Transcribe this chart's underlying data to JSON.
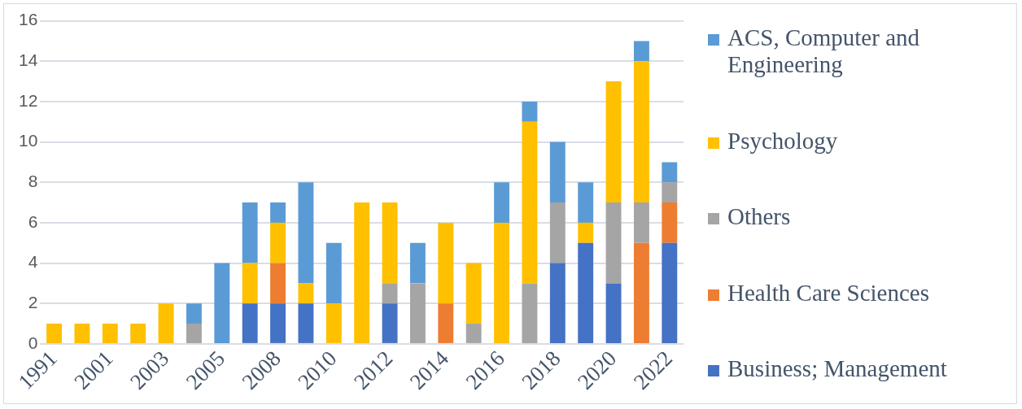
{
  "chart_data": {
    "type": "bar",
    "stacked": true,
    "grid": "y",
    "legend": "right",
    "categories": [
      "1991",
      null,
      "2001",
      null,
      "2003",
      null,
      "2005",
      null,
      "2008",
      null,
      "2010",
      null,
      "2012",
      null,
      "2014",
      null,
      "2016",
      null,
      "2018",
      null,
      "2020",
      null,
      "2022"
    ],
    "ylim": [
      0,
      16
    ],
    "yticks": [
      0,
      2,
      4,
      6,
      8,
      10,
      12,
      14,
      16
    ],
    "series": [
      {
        "name": "Business; Management",
        "color": "#4472c4",
        "values": [
          0,
          0,
          0,
          0,
          0,
          0,
          0,
          2,
          2,
          2,
          0,
          0,
          2,
          0,
          0,
          0,
          0,
          0,
          4,
          5,
          3,
          0,
          5
        ]
      },
      {
        "name": "Health Care Sciences",
        "color": "#ed7d31",
        "values": [
          0,
          0,
          0,
          0,
          0,
          0,
          0,
          0,
          2,
          0,
          0,
          0,
          0,
          0,
          2,
          0,
          0,
          0,
          0,
          0,
          0,
          5,
          2
        ]
      },
      {
        "name": "Others",
        "color": "#a5a5a5",
        "values": [
          0,
          0,
          0,
          0,
          0,
          1,
          0,
          0,
          0,
          0,
          0,
          0,
          1,
          3,
          0,
          1,
          0,
          3,
          3,
          0,
          4,
          2,
          1
        ]
      },
      {
        "name": "Psychology",
        "color": "#ffc000",
        "values": [
          1,
          1,
          1,
          1,
          2,
          0,
          0,
          2,
          2,
          1,
          2,
          7,
          4,
          0,
          4,
          3,
          6,
          8,
          0,
          1,
          6,
          7,
          0
        ]
      },
      {
        "name": "ACS, Computer and Engineering",
        "color": "#5b9bd5",
        "values": [
          0,
          0,
          0,
          0,
          0,
          1,
          4,
          3,
          1,
          5,
          3,
          0,
          0,
          2,
          0,
          0,
          2,
          1,
          3,
          2,
          0,
          1,
          1
        ]
      }
    ]
  }
}
